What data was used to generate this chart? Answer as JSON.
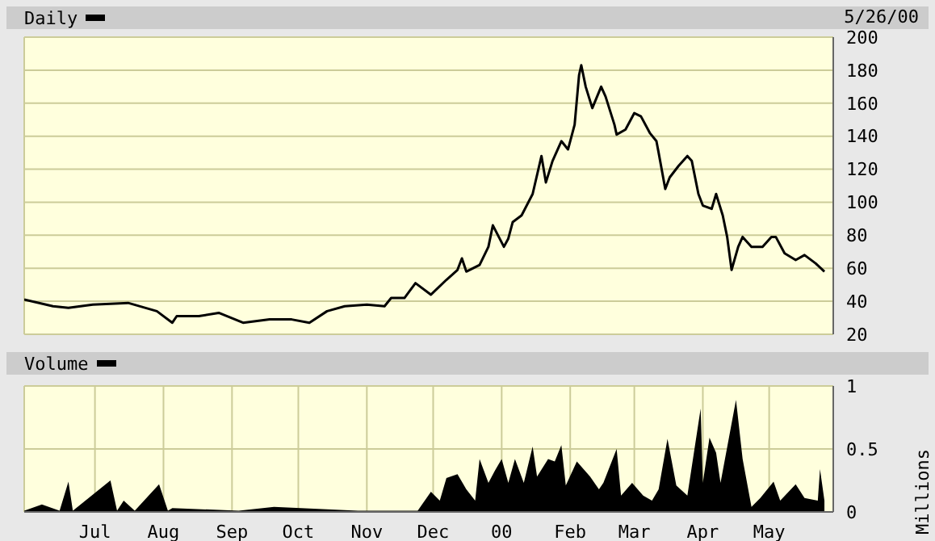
{
  "chart_data": [
    {
      "type": "line",
      "legend": "top left",
      "grid": true,
      "tick_labels": "y",
      "annotations": [
        "5/26/00"
      ],
      "xlim": [
        "1999-05-30",
        "2000-05-30"
      ],
      "ylim": [
        20,
        200
      ],
      "yticks": [
        20,
        40,
        60,
        80,
        100,
        120,
        140,
        160,
        180,
        200
      ],
      "xticks": [
        {
          "value": "1999-07-01",
          "label": null
        },
        {
          "value": "1999-08-01",
          "label": null
        },
        {
          "value": "1999-09-01",
          "label": null
        },
        {
          "value": "1999-10-01",
          "label": null
        },
        {
          "value": "1999-11-01",
          "label": null
        },
        {
          "value": "1999-12-01",
          "label": null
        },
        {
          "value": "2000-01-01",
          "label": null
        },
        {
          "value": "2000-02-01",
          "label": null
        },
        {
          "value": "2000-03-01",
          "label": null
        },
        {
          "value": "2000-04-01",
          "label": null
        },
        {
          "value": "2000-05-01",
          "label": null
        }
      ],
      "x": [
        "1999-05-30",
        "1999-06-12",
        "1999-06-19",
        "1999-06-30",
        "1999-07-16",
        "1999-07-29",
        "1999-08-05",
        "1999-08-07",
        "1999-08-17",
        "1999-08-26",
        "1999-09-06",
        "1999-09-18",
        "1999-09-28",
        "1999-10-06",
        "1999-10-14",
        "1999-10-22",
        "1999-11-01",
        "1999-11-09",
        "1999-11-12",
        "1999-11-18",
        "1999-11-23",
        "1999-11-30",
        "1999-12-07",
        "1999-12-12",
        "1999-12-14",
        "1999-12-16",
        "1999-12-22",
        "1999-12-26",
        "1999-12-28",
        "2000-01-02",
        "2000-01-04",
        "2000-01-06",
        "2000-01-10",
        "2000-01-15",
        "2000-01-19",
        "2000-01-21",
        "2000-01-24",
        "2000-01-28",
        "2000-01-31",
        "2000-02-03",
        "2000-02-05",
        "2000-02-06",
        "2000-02-08",
        "2000-02-11",
        "2000-02-15",
        "2000-02-17",
        "2000-02-21",
        "2000-02-22",
        "2000-02-26",
        "2000-03-01",
        "2000-03-04",
        "2000-03-08",
        "2000-03-11",
        "2000-03-12",
        "2000-03-15",
        "2000-03-17",
        "2000-03-21",
        "2000-03-25",
        "2000-03-27",
        "2000-03-30",
        "2000-04-01",
        "2000-04-05",
        "2000-04-07",
        "2000-04-10",
        "2000-04-12",
        "2000-04-14",
        "2000-04-17",
        "2000-04-19",
        "2000-04-23",
        "2000-04-28",
        "2000-05-02",
        "2000-05-04",
        "2000-05-08",
        "2000-05-13",
        "2000-05-17",
        "2000-05-22",
        "2000-05-26"
      ],
      "series": [
        {
          "name": "Daily",
          "color": "#000000",
          "values": [
            41,
            37,
            36,
            38,
            39,
            34,
            27,
            31,
            31,
            33,
            27,
            29,
            29,
            27,
            34,
            37,
            38,
            37,
            42,
            42,
            51,
            44,
            53,
            59,
            66,
            58,
            62,
            73,
            86,
            73,
            78,
            88,
            92,
            105,
            128,
            112,
            125,
            137,
            132,
            147,
            177,
            183,
            170,
            157,
            170,
            164,
            147,
            141,
            144,
            154,
            152,
            142,
            137,
            130,
            108,
            115,
            122,
            128,
            125,
            105,
            98,
            96,
            105,
            92,
            79,
            59,
            73,
            79,
            73,
            73,
            79,
            79,
            69,
            65,
            68,
            63,
            58
          ]
        }
      ]
    },
    {
      "type": "area",
      "legend": "top left",
      "grid": true,
      "ylabel": "Millions",
      "xlim": [
        "1999-05-30",
        "2000-05-30"
      ],
      "ylim": [
        0,
        1
      ],
      "yticks": [
        0,
        0.5,
        1
      ],
      "xticks": [
        {
          "value": "1999-07-01",
          "label": "Jul"
        },
        {
          "value": "1999-08-01",
          "label": "Aug"
        },
        {
          "value": "1999-09-01",
          "label": "Sep"
        },
        {
          "value": "1999-10-01",
          "label": "Oct"
        },
        {
          "value": "1999-11-01",
          "label": "Nov"
        },
        {
          "value": "1999-12-01",
          "label": "Dec"
        },
        {
          "value": "2000-01-01",
          "label": "00"
        },
        {
          "value": "2000-02-01",
          "label": "Feb"
        },
        {
          "value": "2000-03-01",
          "label": "Mar"
        },
        {
          "value": "2000-04-01",
          "label": "Apr"
        },
        {
          "value": "2000-05-01",
          "label": "May"
        }
      ],
      "x": [
        "1999-05-30",
        "1999-06-07",
        "1999-06-15",
        "1999-06-19",
        "1999-06-21",
        "1999-07-08",
        "1999-07-11",
        "1999-07-14",
        "1999-07-19",
        "1999-07-30",
        "1999-08-03",
        "1999-08-05",
        "1999-09-04",
        "1999-09-20",
        "1999-10-28",
        "1999-11-24",
        "1999-11-30",
        "1999-12-04",
        "1999-12-07",
        "1999-12-12",
        "1999-12-16",
        "1999-12-20",
        "1999-12-22",
        "1999-12-26",
        "1999-12-29",
        "2000-01-01",
        "2000-01-04",
        "2000-01-07",
        "2000-01-11",
        "2000-01-15",
        "2000-01-17",
        "2000-01-22",
        "2000-01-25",
        "2000-01-28",
        "2000-01-30",
        "2000-02-04",
        "2000-02-10",
        "2000-02-14",
        "2000-02-16",
        "2000-02-22",
        "2000-02-24",
        "2000-02-29",
        "2000-03-05",
        "2000-03-09",
        "2000-03-12",
        "2000-03-16",
        "2000-03-20",
        "2000-03-25",
        "2000-03-31",
        "2000-04-01",
        "2000-04-04",
        "2000-04-07",
        "2000-04-09",
        "2000-04-16",
        "2000-04-19",
        "2000-04-23",
        "2000-04-27",
        "2000-05-03",
        "2000-05-06",
        "2000-05-13",
        "2000-05-17",
        "2000-05-23",
        "2000-05-24",
        "2000-05-26"
      ],
      "series": [
        {
          "name": "Volume",
          "color": "#000000",
          "values": [
            0.01,
            0.06,
            0.01,
            0.24,
            0.01,
            0.25,
            0.01,
            0.09,
            0.01,
            0.22,
            0.01,
            0.03,
            0.01,
            0.04,
            0.01,
            0.01,
            0.16,
            0.09,
            0.27,
            0.3,
            0.18,
            0.09,
            0.42,
            0.23,
            0.33,
            0.42,
            0.23,
            0.42,
            0.23,
            0.52,
            0.28,
            0.42,
            0.4,
            0.53,
            0.21,
            0.4,
            0.28,
            0.18,
            0.23,
            0.5,
            0.13,
            0.23,
            0.13,
            0.09,
            0.18,
            0.58,
            0.21,
            0.13,
            0.82,
            0.23,
            0.59,
            0.47,
            0.23,
            0.89,
            0.42,
            0.04,
            0.11,
            0.24,
            0.09,
            0.22,
            0.11,
            0.09,
            0.34,
            0.09
          ]
        }
      ]
    }
  ]
}
